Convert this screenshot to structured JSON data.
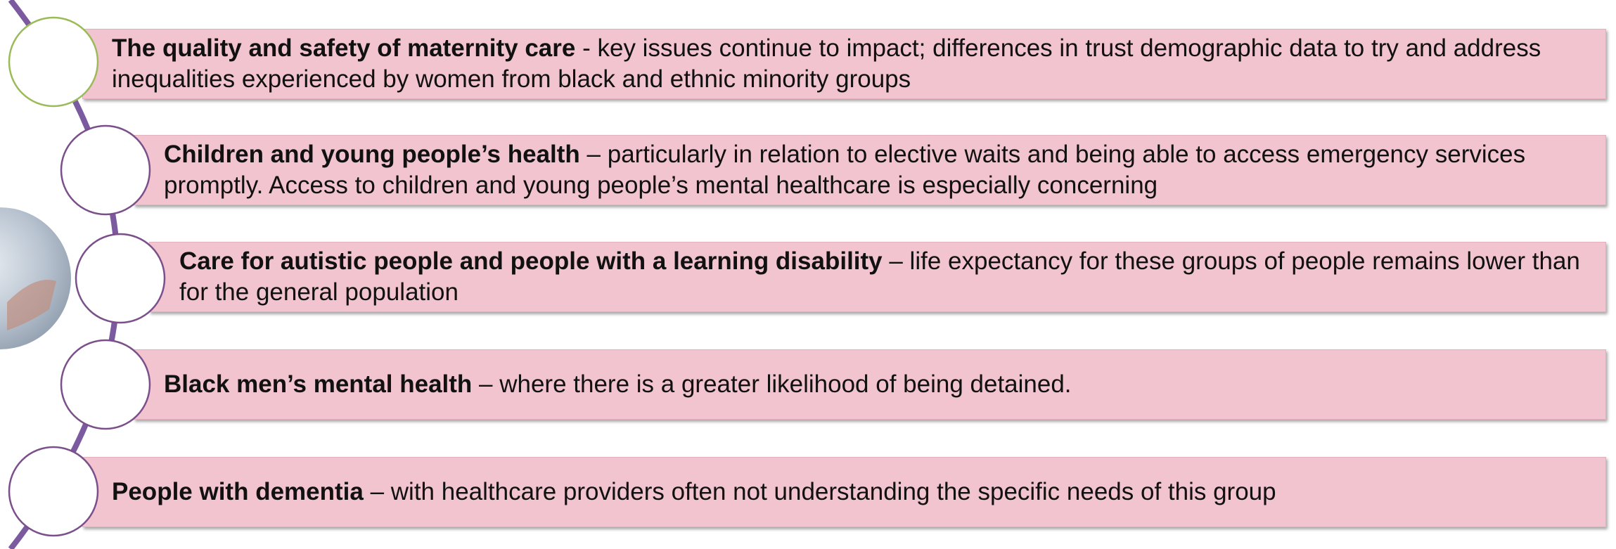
{
  "items": [
    {
      "heading": "The quality and safety of maternity care",
      "text": " - key issues continue to impact; differences in trust demographic data to try and address inequalities experienced by women from black and ethnic minority groups"
    },
    {
      "heading": "Children and young people’s health",
      "text": " – particularly in relation to elective waits and being able to access emergency services promptly. Access to children and young people’s mental healthcare is especially concerning"
    },
    {
      "heading": "Care for autistic people and people with a learning disability",
      "text": " – life expectancy for these groups of people remains lower than for the general population"
    },
    {
      "heading": "Black men’s mental health",
      "text": " – where there is a greater likelihood of being detained."
    },
    {
      "heading": "People with dementia",
      "text": " – with healthcare providers often not understanding the specific needs of this group"
    }
  ]
}
